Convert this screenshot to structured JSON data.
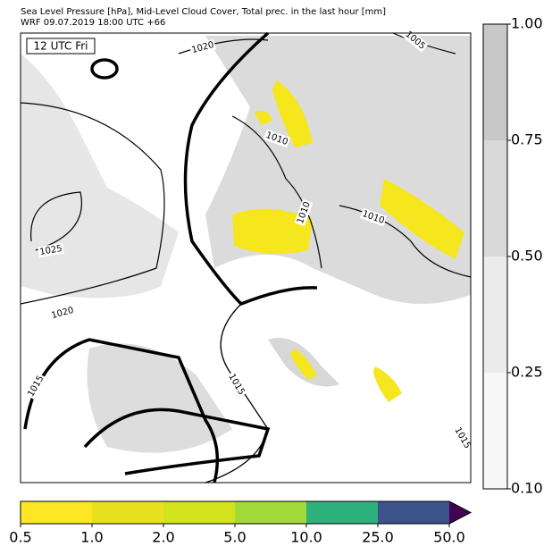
{
  "header": {
    "title": "Sea Level Pressure [hPa], Mid-Level Cloud Cover, Total prec. in the last hour [mm]",
    "subtitle": "WRF 09.07.2019 18:00 UTC +66"
  },
  "map": {
    "time_label": "12 UTC Fri",
    "contour_labels": [
      "1020",
      "1025",
      "1020",
      "1015",
      "1015",
      "1010",
      "1010",
      "1010",
      "1005",
      "1015"
    ]
  },
  "cloud_colorbar": {
    "ticks": [
      "0.10",
      "0.25",
      "0.50",
      "0.75",
      "1.00"
    ],
    "colors": [
      "#f7f7f7",
      "#ebebeb",
      "#d9d9d9",
      "#c8c8c8"
    ]
  },
  "precip_colorbar": {
    "ticks": [
      "0.5",
      "1.0",
      "2.0",
      "5.0",
      "10.0",
      "25.0",
      "50.0"
    ],
    "colors": [
      "#fde725",
      "#e8e21e",
      "#d2e21b",
      "#a2da37",
      "#2db27d",
      "#3b528b"
    ],
    "extend_color": "#440154"
  }
}
